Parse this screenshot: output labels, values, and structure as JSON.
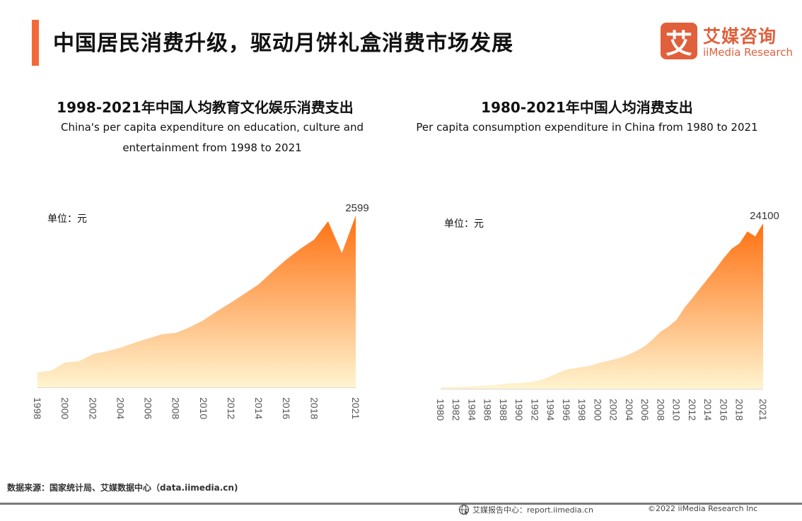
{
  "header": {
    "title": "中国居民消费升级，驱动月饼礼盒消费市场发展",
    "accent_color": "#f26a3a"
  },
  "logo": {
    "mark": "艾",
    "name_cn": "艾媒咨询",
    "name_en": "iiMedia Research",
    "color": "#e0603c"
  },
  "chart_data": [
    {
      "type": "area",
      "title": "1998-2021年中国人均教育文化娱乐消费支出",
      "subtitle_lines": [
        "China's per capita expenditure on education, culture and",
        "entertainment from 1998 to 2021"
      ],
      "unit_label": "单位：元",
      "x": [
        1998,
        1999,
        2000,
        2001,
        2002,
        2003,
        2004,
        2005,
        2006,
        2007,
        2008,
        2009,
        2010,
        2011,
        2012,
        2013,
        2014,
        2015,
        2016,
        2017,
        2018,
        2019,
        2020,
        2021
      ],
      "values": [
        225,
        257,
        375,
        396,
        503,
        546,
        600,
        675,
        739,
        803,
        825,
        910,
        1017,
        1156,
        1284,
        1423,
        1562,
        1755,
        1937,
        2097,
        2236,
        2513,
        2032,
        2599
      ],
      "tick_labels": [
        "1998",
        "2000",
        "2002",
        "2004",
        "2006",
        "2008",
        "2010",
        "2012",
        "2014",
        "2016",
        "2018",
        "2021"
      ],
      "annotations": [
        {
          "x": 2021,
          "label": "2599"
        }
      ],
      "ylim": [
        0,
        2599
      ],
      "grid": false,
      "gradient": {
        "top": "#ff7010",
        "bottom": "#fff4d0"
      }
    },
    {
      "type": "area",
      "title": "1980-2021年中国人均消费支出",
      "subtitle_lines": [
        "Per capita consumption expenditure in China from 1980 to 2021"
      ],
      "unit_label": "单位：元",
      "x": [
        1980,
        1981,
        1982,
        1983,
        1984,
        1985,
        1986,
        1987,
        1988,
        1989,
        1990,
        1991,
        1992,
        1993,
        1994,
        1995,
        1996,
        1997,
        1998,
        1999,
        2000,
        2001,
        2002,
        2003,
        2004,
        2005,
        2006,
        2007,
        2008,
        2009,
        2010,
        2011,
        2012,
        2013,
        2014,
        2015,
        2016,
        2017,
        2018,
        2019,
        2020,
        2021
      ],
      "values": [
        238,
        264,
        288,
        316,
        361,
        446,
        497,
        565,
        714,
        788,
        833,
        932,
        1116,
        1393,
        1833,
        2355,
        2789,
        3002,
        3159,
        3346,
        3721,
        3987,
        4270,
        4555,
        5032,
        5573,
        6263,
        7255,
        8349,
        9098,
        10060,
        11819,
        13205,
        14650,
        16090,
        17520,
        19050,
        20400,
        21170,
        22930,
        22210,
        24100
      ],
      "tick_labels": [
        "1980",
        "1982",
        "1984",
        "1986",
        "1988",
        "1990",
        "1992",
        "1994",
        "1996",
        "1998",
        "2000",
        "2002",
        "2004",
        "2006",
        "2008",
        "2010",
        "2012",
        "2014",
        "2016",
        "2018",
        "2021"
      ],
      "annotations": [
        {
          "x": 2021,
          "label": "24100"
        }
      ],
      "ylim": [
        0,
        24100
      ],
      "grid": false,
      "gradient": {
        "top": "#ff7010",
        "bottom": "#fff4d0"
      }
    }
  ],
  "footer": {
    "source": "数据来源：国家统计局、艾媒数据中心（data.iimedia.cn)",
    "report_center": "艾媒报告中心：report.iimedia.cn",
    "copyright": "©2022  iiMedia Research  Inc"
  }
}
